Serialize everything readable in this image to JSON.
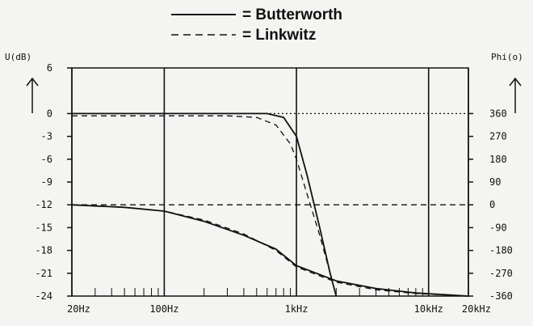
{
  "chart_data": {
    "type": "line",
    "legend": [
      {
        "label": "= Butterworth",
        "style": "solid"
      },
      {
        "label": "= Linkwitz",
        "style": "dashed"
      }
    ],
    "left_axis": {
      "title": "U(dB)",
      "ticks": [
        "6",
        "0",
        "-3",
        "-6",
        "-9",
        "-12",
        "-15",
        "-18",
        "-21",
        "-24"
      ],
      "range": [
        -24,
        6
      ]
    },
    "right_axis": {
      "title": "Phi(o)",
      "ticks": [
        "360",
        "270",
        "180",
        "90",
        "0",
        "-90",
        "-180",
        "-270",
        "-360"
      ],
      "range": [
        -360,
        360
      ]
    },
    "x_axis": {
      "scale": "log",
      "range": [
        20,
        20000
      ],
      "labels": [
        {
          "value": 20,
          "text": "20Hz"
        },
        {
          "value": 100,
          "text": "100Hz"
        },
        {
          "value": 1000,
          "text": "1kHz"
        },
        {
          "value": 10000,
          "text": "10kHz"
        },
        {
          "value": 20000,
          "text": "20kHz"
        }
      ]
    },
    "series": [
      {
        "name": "Butterworth",
        "quantity": "magnitude",
        "axis": "left",
        "style": "solid",
        "x": [
          20,
          100,
          300,
          600,
          800,
          1000,
          1200,
          1500,
          1800,
          2000
        ],
        "y": [
          0,
          0,
          0,
          0,
          -0.5,
          -3,
          -8,
          -15,
          -21,
          -24
        ]
      },
      {
        "name": "Linkwitz",
        "quantity": "magnitude",
        "axis": "left",
        "style": "dashed",
        "x": [
          20,
          100,
          300,
          500,
          700,
          900,
          1000,
          1200,
          1500,
          1800,
          2000
        ],
        "y": [
          -0.3,
          -0.3,
          -0.3,
          -0.5,
          -1.5,
          -4,
          -6,
          -10.5,
          -16,
          -21,
          -24
        ]
      },
      {
        "name": "Butterworth",
        "quantity": "phase",
        "axis": "right",
        "style": "solid",
        "x": [
          20,
          50,
          100,
          200,
          400,
          700,
          1000,
          2000,
          4000,
          8000,
          20000
        ],
        "y": [
          0,
          -10,
          -25,
          -65,
          -120,
          -175,
          -240,
          -300,
          -330,
          -348,
          -360
        ]
      },
      {
        "name": "Linkwitz",
        "quantity": "phase",
        "axis": "right",
        "style": "dashed",
        "x": [
          20,
          50,
          100,
          200,
          400,
          700,
          1000,
          2000,
          4000,
          8000,
          20000
        ],
        "y": [
          0,
          -10,
          -25,
          -60,
          -115,
          -180,
          -245,
          -305,
          -335,
          -350,
          -360
        ]
      },
      {
        "name": "",
        "quantity": "reference",
        "axis": "left",
        "style": "dotted",
        "x": [
          20,
          20000
        ],
        "y": [
          0,
          0
        ]
      },
      {
        "name": "",
        "quantity": "reference",
        "axis": "right",
        "style": "dashed",
        "x": [
          20,
          20000
        ],
        "y": [
          0,
          0
        ]
      }
    ],
    "grid": true
  }
}
